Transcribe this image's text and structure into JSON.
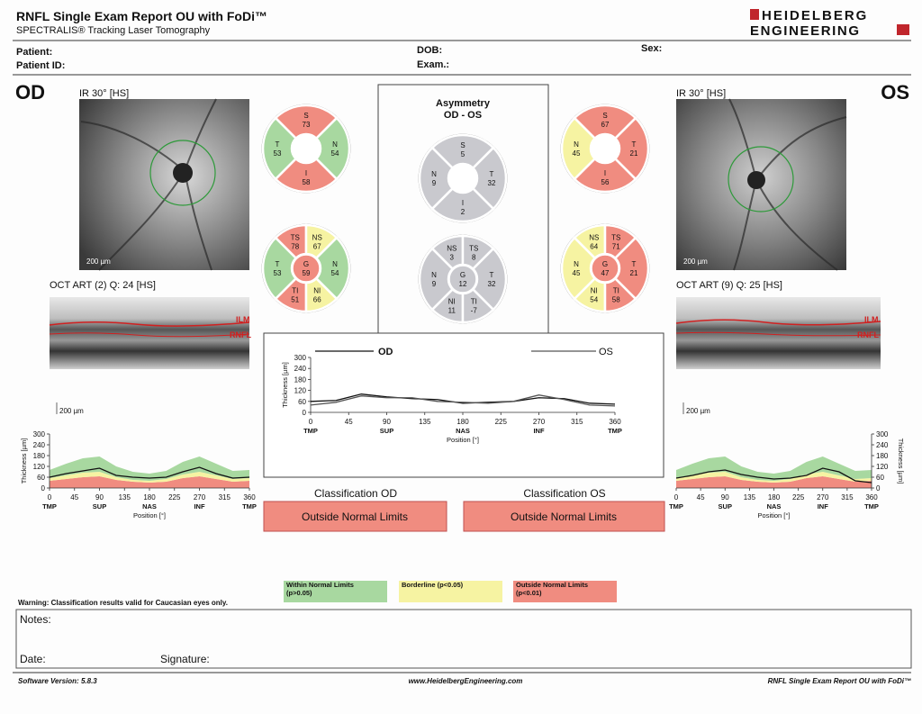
{
  "header": {
    "title": "RNFL Single Exam Report OU with FoDi™",
    "subtitle": "SPECTRALIS® Tracking Laser Tomography",
    "logo": [
      "HEIDELBERG",
      "ENGINEERING"
    ]
  },
  "patient": {
    "patient": "Patient:",
    "patient_id": "Patient ID:",
    "dob": "DOB:",
    "exam": "Exam.:",
    "sex": "Sex:"
  },
  "od": {
    "eye": "OD",
    "ir_label": "IR 30° [HS]",
    "ir_scale": "200 µm",
    "oct_label": "OCT ART (2) Q: 24 [HS]",
    "oct_layers": [
      "ILM",
      "RNFL"
    ],
    "oct_scale": "200 µm",
    "quadrants": [
      {
        "label": "S",
        "value": 73,
        "color": "#f08c80"
      },
      {
        "label": "T",
        "value": 53,
        "color": "#a8d8a0"
      },
      {
        "label": "N",
        "value": 54,
        "color": "#a8d8a0"
      },
      {
        "label": "I",
        "value": 58,
        "color": "#f08c80"
      }
    ],
    "sectors": [
      {
        "label": "TS",
        "value": 78,
        "color": "#f08c80"
      },
      {
        "label": "NS",
        "value": 67,
        "color": "#f6f3a2"
      },
      {
        "label": "T",
        "value": 53,
        "color": "#a8d8a0"
      },
      {
        "label": "N",
        "value": 54,
        "color": "#a8d8a0"
      },
      {
        "label": "TI",
        "value": 51,
        "color": "#f08c80"
      },
      {
        "label": "NI",
        "value": 66,
        "color": "#f6f3a2"
      }
    ],
    "global": {
      "label": "G",
      "value": 59,
      "color": "#f08c80"
    }
  },
  "os": {
    "eye": "OS",
    "ir_label": "IR 30° [HS]",
    "ir_scale": "200 µm",
    "oct_label": "OCT ART (9) Q: 25 [HS]",
    "oct_layers": [
      "ILM",
      "RNFL"
    ],
    "oct_scale": "200 µm",
    "quadrants": [
      {
        "label": "S",
        "value": 67,
        "color": "#f08c80"
      },
      {
        "label": "N",
        "value": 45,
        "color": "#f6f3a2"
      },
      {
        "label": "T",
        "value": 21,
        "color": "#f08c80"
      },
      {
        "label": "I",
        "value": 56,
        "color": "#f08c80"
      }
    ],
    "sectors": [
      {
        "label": "NS",
        "value": 64,
        "color": "#f6f3a2"
      },
      {
        "label": "TS",
        "value": 71,
        "color": "#f08c80"
      },
      {
        "label": "N",
        "value": 45,
        "color": "#f6f3a2"
      },
      {
        "label": "T",
        "value": 21,
        "color": "#f08c80"
      },
      {
        "label": "NI",
        "value": 54,
        "color": "#f6f3a2"
      },
      {
        "label": "TI",
        "value": 58,
        "color": "#f08c80"
      }
    ],
    "global": {
      "label": "G",
      "value": 47,
      "color": "#f08c80"
    }
  },
  "asymmetry": {
    "title": "Asymmetry",
    "subtitle": "OD - OS",
    "color": "#c9c9ce",
    "quadrants": [
      {
        "label": "S",
        "value": 5
      },
      {
        "label": "N",
        "value": 9
      },
      {
        "label": "T",
        "value": 32
      },
      {
        "label": "I",
        "value": 2
      }
    ],
    "sectors": [
      {
        "label": "NS",
        "value": 3
      },
      {
        "label": "TS",
        "value": 8
      },
      {
        "label": "N",
        "value": 9
      },
      {
        "label": "T",
        "value": 32
      },
      {
        "label": "NI",
        "value": 11
      },
      {
        "label": "TI",
        "value": -7
      }
    ],
    "global": {
      "label": "G",
      "value": 12
    }
  },
  "classification": {
    "od_label": "Classification OD",
    "od_result": "Outside Normal Limits",
    "od_color": "#f08c80",
    "os_label": "Classification OS",
    "os_result": "Outside Normal Limits",
    "os_color": "#f08c80"
  },
  "legend": [
    {
      "label": [
        "Within Normal Limits",
        "(p>0.05)"
      ],
      "color": "#a8d8a0"
    },
    {
      "label": [
        "Borderline (p<0.05)"
      ],
      "color": "#f6f3a2"
    },
    {
      "label": [
        "Outside Normal Limits",
        "(p<0.01)"
      ],
      "color": "#f08c80"
    }
  ],
  "warning": "Warning: Classification results valid for Caucasian eyes only.",
  "notes": {
    "notes": "Notes:",
    "date": "Date:",
    "signature": "Signature:"
  },
  "footer": {
    "software": "Software Version: 5.8.3",
    "url": "www.HeidelbergEngineering.com",
    "report": "RNFL Single Exam Report OU with FoDi™"
  },
  "chart_data": [
    {
      "type": "line",
      "ylabel": "Thickness [µm]",
      "xlabel": "Position [°]",
      "xlim": [
        0,
        360
      ],
      "xticks": [
        0,
        45,
        90,
        135,
        180,
        225,
        270,
        315,
        360
      ],
      "x_categories": [
        {
          "value": 0,
          "label": "TMP"
        },
        {
          "value": 90,
          "label": "SUP"
        },
        {
          "value": 180,
          "label": "NAS"
        },
        {
          "value": 270,
          "label": "INF"
        },
        {
          "value": 360,
          "label": "TMP"
        }
      ],
      "ylim": [
        0,
        300
      ],
      "yticks": [
        0,
        60,
        120,
        180,
        240,
        300
      ],
      "x": [
        0,
        30,
        60,
        90,
        120,
        150,
        180,
        210,
        240,
        270,
        300,
        330,
        360
      ],
      "bands": [
        {
          "color": "#f08c80",
          "values": [
            40,
            50,
            60,
            65,
            45,
            35,
            30,
            35,
            55,
            65,
            50,
            35,
            40
          ]
        },
        {
          "color": "#f6f3a2",
          "values": [
            55,
            70,
            85,
            90,
            60,
            45,
            40,
            50,
            75,
            90,
            70,
            50,
            55
          ]
        },
        {
          "color": "#a8d8a0",
          "values": [
            100,
            135,
            165,
            175,
            120,
            90,
            80,
            95,
            145,
            175,
            135,
            95,
            100
          ]
        }
      ],
      "series": [
        {
          "color": "#111111",
          "values": [
            60,
            80,
            95,
            110,
            70,
            60,
            55,
            60,
            90,
            115,
            80,
            55,
            60
          ]
        }
      ]
    },
    {
      "type": "line",
      "ylabel": "Thickness [µm]",
      "xlabel": "Position [°]",
      "xlim": [
        0,
        360
      ],
      "xticks": [
        0,
        45,
        90,
        135,
        180,
        225,
        270,
        315,
        360
      ],
      "x_categories": [
        {
          "value": 0,
          "label": "TMP"
        },
        {
          "value": 90,
          "label": "SUP"
        },
        {
          "value": 180,
          "label": "NAS"
        },
        {
          "value": 270,
          "label": "INF"
        },
        {
          "value": 360,
          "label": "TMP"
        }
      ],
      "ylim": [
        0,
        300
      ],
      "yticks": [
        0,
        60,
        120,
        180,
        240,
        300
      ],
      "x": [
        0,
        30,
        60,
        90,
        120,
        150,
        180,
        210,
        240,
        270,
        300,
        330,
        360
      ],
      "series": [
        {
          "name": "OD",
          "color": "#111111",
          "values": [
            60,
            65,
            100,
            85,
            75,
            70,
            50,
            55,
            60,
            80,
            75,
            50,
            45
          ]
        },
        {
          "name": "OS",
          "color": "#555555",
          "values": [
            40,
            55,
            90,
            80,
            80,
            60,
            55,
            50,
            60,
            95,
            70,
            40,
            35
          ]
        }
      ]
    },
    {
      "type": "line",
      "ylabel": "Thickness [µm]",
      "xlabel": "Position [°]",
      "xlim": [
        0,
        360
      ],
      "xticks": [
        0,
        45,
        90,
        135,
        180,
        225,
        270,
        315,
        360
      ],
      "x_categories": [
        {
          "value": 0,
          "label": "TMP"
        },
        {
          "value": 90,
          "label": "SUP"
        },
        {
          "value": 180,
          "label": "NAS"
        },
        {
          "value": 270,
          "label": "INF"
        },
        {
          "value": 360,
          "label": "TMP"
        }
      ],
      "ylim": [
        0,
        300
      ],
      "yticks": [
        0,
        60,
        120,
        180,
        240,
        300
      ],
      "x": [
        0,
        30,
        60,
        90,
        120,
        150,
        180,
        210,
        240,
        270,
        300,
        330,
        360
      ],
      "bands": [
        {
          "color": "#f08c80",
          "values": [
            40,
            50,
            60,
            65,
            45,
            35,
            30,
            35,
            55,
            65,
            50,
            35,
            40
          ]
        },
        {
          "color": "#f6f3a2",
          "values": [
            55,
            70,
            85,
            90,
            60,
            45,
            40,
            50,
            75,
            90,
            70,
            50,
            55
          ]
        },
        {
          "color": "#a8d8a0",
          "values": [
            100,
            135,
            165,
            175,
            120,
            90,
            80,
            95,
            145,
            175,
            135,
            95,
            100
          ]
        }
      ],
      "series": [
        {
          "color": "#111111",
          "values": [
            55,
            70,
            90,
            100,
            75,
            60,
            50,
            55,
            70,
            110,
            90,
            40,
            30
          ]
        }
      ]
    }
  ]
}
